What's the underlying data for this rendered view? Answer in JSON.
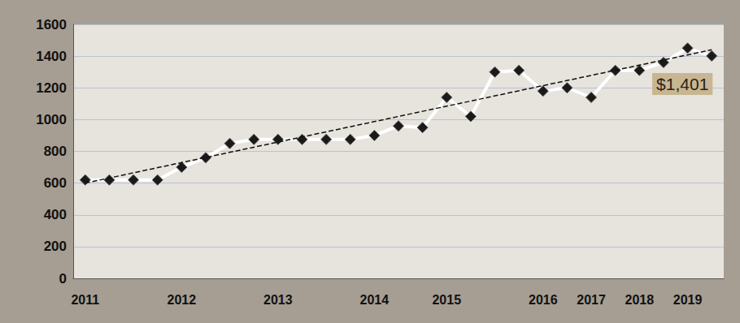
{
  "chart_data": {
    "type": "line",
    "categories": [
      "2011",
      null,
      null,
      null,
      "2012",
      null,
      null,
      null,
      "2013",
      null,
      null,
      null,
      "2014",
      null,
      null,
      "2015",
      null,
      null,
      null,
      "2016",
      null,
      "2017",
      null,
      "2018",
      null,
      "2019",
      null
    ],
    "values": [
      620,
      620,
      620,
      620,
      700,
      760,
      850,
      875,
      875,
      875,
      875,
      875,
      900,
      960,
      950,
      1140,
      1020,
      1300,
      1310,
      1180,
      1200,
      1140,
      1310,
      1310,
      1360,
      1450,
      1401
    ],
    "color": "#ffffff",
    "marker": "diamond",
    "ylim": [
      0,
      1600
    ],
    "yticks": [
      0,
      200,
      400,
      600,
      800,
      1000,
      1200,
      1400,
      1600
    ],
    "grid": true,
    "trendline": {
      "values": [
        600,
        1440
      ],
      "line_style": "dashed"
    },
    "annotations": [
      {
        "text": "$1,401",
        "value": 1401
      }
    ]
  }
}
